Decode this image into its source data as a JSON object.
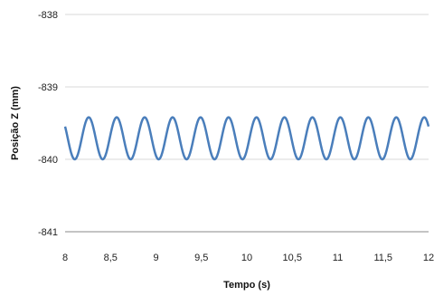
{
  "chart_data": {
    "type": "line",
    "title": "",
    "xlabel": "Tempo (s)",
    "ylabel": "Posição Z (mm)",
    "xlim": [
      8,
      12
    ],
    "ylim": [
      -841,
      -838
    ],
    "x_ticks": [
      8,
      8.5,
      9,
      9.5,
      10,
      10.5,
      11,
      11.5,
      12
    ],
    "x_tick_labels": [
      "8",
      "8,5",
      "9",
      "9,5",
      "10",
      "10,5",
      "11",
      "11,5",
      "12"
    ],
    "y_ticks": [
      -838,
      -839,
      -840,
      -841
    ],
    "y_tick_labels": [
      "-838",
      "-839",
      "-840",
      "-841"
    ],
    "grid": "horizontal",
    "legend": "none",
    "series": [
      {
        "color": "#4a7ebb",
        "waveform": "sinusoid",
        "mean": -839.71,
        "amplitude": 0.29,
        "period_s": 0.3077,
        "x_start": 8,
        "x_end": 12,
        "first_peak_x": 8.26
      }
    ]
  }
}
